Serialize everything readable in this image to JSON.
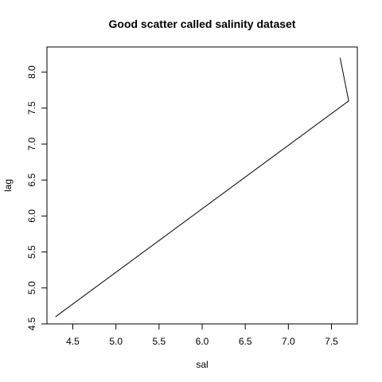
{
  "chart_data": {
    "type": "line",
    "title": "Good scatter called salinity dataset",
    "xlabel": "sal",
    "ylabel": "lag",
    "x": [
      4.3,
      7.7,
      7.6
    ],
    "y": [
      4.6,
      7.6,
      8.2
    ],
    "xlim": [
      4.2,
      7.8
    ],
    "ylim": [
      4.5,
      8.35
    ],
    "xticks": [
      4.5,
      5.0,
      5.5,
      6.0,
      6.5,
      7.0,
      7.5
    ],
    "xtick_labels": [
      "4.5",
      "5.0",
      "5.5",
      "6.0",
      "6.5",
      "7.0",
      "7.5"
    ],
    "yticks": [
      4.5,
      5.0,
      5.5,
      6.0,
      6.5,
      7.0,
      7.5,
      8.0
    ],
    "ytick_labels": [
      "4.5",
      "5.0",
      "5.5",
      "6.0",
      "6.5",
      "7.0",
      "7.5",
      "8.0"
    ],
    "grid": false,
    "line_color": "#000000"
  }
}
